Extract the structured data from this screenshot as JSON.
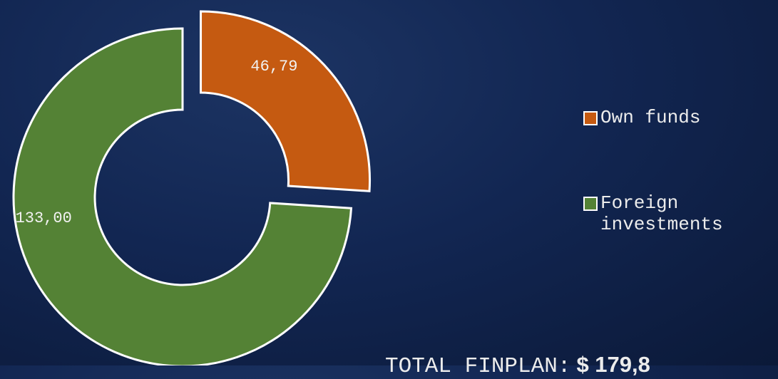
{
  "chart_data": {
    "type": "donut",
    "categories": [
      "Own funds",
      "Foreign investments"
    ],
    "values": [
      46.79,
      133.0
    ],
    "value_labels": [
      "46,79",
      "133,00"
    ],
    "colors": [
      "#c55a11",
      "#548235"
    ],
    "total_label": "TOTAL FINPLAN:",
    "total_value": "$ 179,8"
  }
}
